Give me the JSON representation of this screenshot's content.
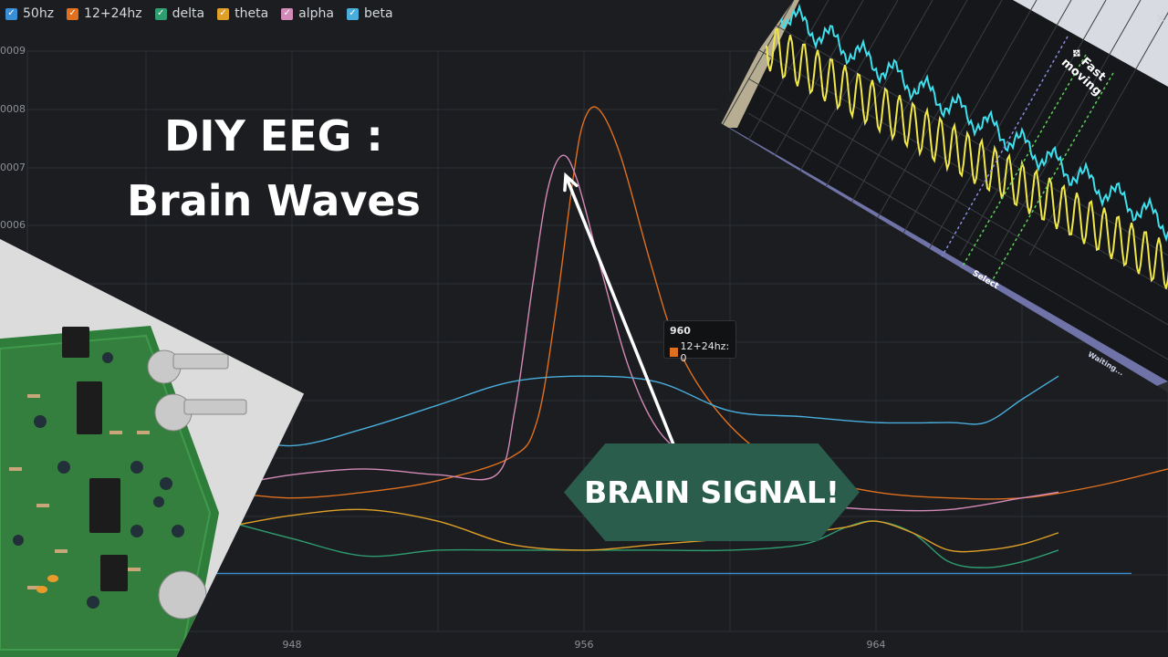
{
  "title": {
    "line1": "DIY EEG :",
    "line2": "Brain Waves"
  },
  "banner": {
    "label": "BRAIN SIGNAL!",
    "color": "#2a5d4c"
  },
  "tooltip": {
    "title": "960",
    "series": "12+24hz",
    "value": "0",
    "text": "12+24hz: 0"
  },
  "scope": {
    "mode_label": "Fast moving",
    "select_label": "Select",
    "waiting_label": "Waiting...",
    "close_label": "×",
    "icon": "move-icon"
  },
  "chart_data": {
    "type": "line",
    "ytick_labels": [
      "0009",
      "0008",
      "0007",
      "0006"
    ],
    "x_ticks": [
      948,
      956,
      964
    ],
    "xlim": [
      940,
      972
    ],
    "ylim": [
      0,
      1
    ],
    "grid": true,
    "legend_position": "top-left",
    "series": [
      {
        "name": "50hz",
        "color": "#3a8ed6",
        "checked": true,
        "points": [
          [
            940,
            0.1
          ],
          [
            971,
            0.1
          ]
        ]
      },
      {
        "name": "12+24hz",
        "color": "#e0701e",
        "checked": true,
        "points": [
          [
            946.2,
            0.24
          ],
          [
            948,
            0.23
          ],
          [
            950,
            0.24
          ],
          [
            952,
            0.26
          ],
          [
            954,
            0.3
          ],
          [
            954.7,
            0.36
          ],
          [
            955.2,
            0.54
          ],
          [
            955.7,
            0.78
          ],
          [
            956,
            0.88
          ],
          [
            956.4,
            0.9
          ],
          [
            957,
            0.82
          ],
          [
            957.8,
            0.64
          ],
          [
            958.5,
            0.5
          ],
          [
            959.4,
            0.4
          ],
          [
            960.6,
            0.32
          ],
          [
            962,
            0.27
          ],
          [
            964,
            0.24
          ],
          [
            966,
            0.23
          ],
          [
            968,
            0.23
          ],
          [
            970,
            0.25
          ],
          [
            972,
            0.28
          ]
        ]
      },
      {
        "name": "delta",
        "color": "#2e9e70",
        "checked": true,
        "points": [
          [
            946.2,
            0.19
          ],
          [
            948,
            0.16
          ],
          [
            950,
            0.13
          ],
          [
            952,
            0.14
          ],
          [
            954,
            0.14
          ],
          [
            956,
            0.14
          ],
          [
            958,
            0.14
          ],
          [
            960,
            0.14
          ],
          [
            962,
            0.15
          ],
          [
            963.2,
            0.18
          ],
          [
            964,
            0.19
          ],
          [
            965,
            0.17
          ],
          [
            966,
            0.12
          ],
          [
            967,
            0.11
          ],
          [
            968,
            0.12
          ],
          [
            969,
            0.14
          ]
        ]
      },
      {
        "name": "theta",
        "color": "#e0a028",
        "checked": true,
        "points": [
          [
            946.2,
            0.18
          ],
          [
            948,
            0.2
          ],
          [
            950,
            0.21
          ],
          [
            952,
            0.19
          ],
          [
            954,
            0.15
          ],
          [
            956,
            0.14
          ],
          [
            958,
            0.15
          ],
          [
            960,
            0.16
          ],
          [
            962,
            0.17
          ],
          [
            963.2,
            0.18
          ],
          [
            964,
            0.19
          ],
          [
            965,
            0.17
          ],
          [
            966,
            0.14
          ],
          [
            967,
            0.14
          ],
          [
            968,
            0.15
          ],
          [
            969,
            0.17
          ]
        ]
      },
      {
        "name": "alpha",
        "color": "#d48ab8",
        "checked": true,
        "points": [
          [
            946.2,
            0.25
          ],
          [
            948,
            0.27
          ],
          [
            950,
            0.28
          ],
          [
            952,
            0.27
          ],
          [
            953.6,
            0.27
          ],
          [
            954.1,
            0.38
          ],
          [
            954.6,
            0.6
          ],
          [
            955,
            0.76
          ],
          [
            955.4,
            0.82
          ],
          [
            955.8,
            0.78
          ],
          [
            956.4,
            0.64
          ],
          [
            957.2,
            0.46
          ],
          [
            958,
            0.35
          ],
          [
            959,
            0.29
          ],
          [
            960,
            0.24
          ],
          [
            962,
            0.22
          ],
          [
            964,
            0.21
          ],
          [
            966,
            0.21
          ],
          [
            968,
            0.23
          ],
          [
            969,
            0.24
          ]
        ]
      },
      {
        "name": "beta",
        "color": "#4aaedc",
        "checked": true,
        "points": [
          [
            946.2,
            0.34
          ],
          [
            948,
            0.32
          ],
          [
            950,
            0.35
          ],
          [
            952,
            0.39
          ],
          [
            954,
            0.43
          ],
          [
            956,
            0.44
          ],
          [
            958,
            0.43
          ],
          [
            960,
            0.38
          ],
          [
            962,
            0.37
          ],
          [
            964,
            0.36
          ],
          [
            966,
            0.36
          ],
          [
            967,
            0.36
          ],
          [
            968,
            0.4
          ],
          [
            969,
            0.44
          ]
        ]
      }
    ],
    "highlight_point": {
      "series": "12+24hz",
      "x": 958.5,
      "y": 0.5
    }
  }
}
